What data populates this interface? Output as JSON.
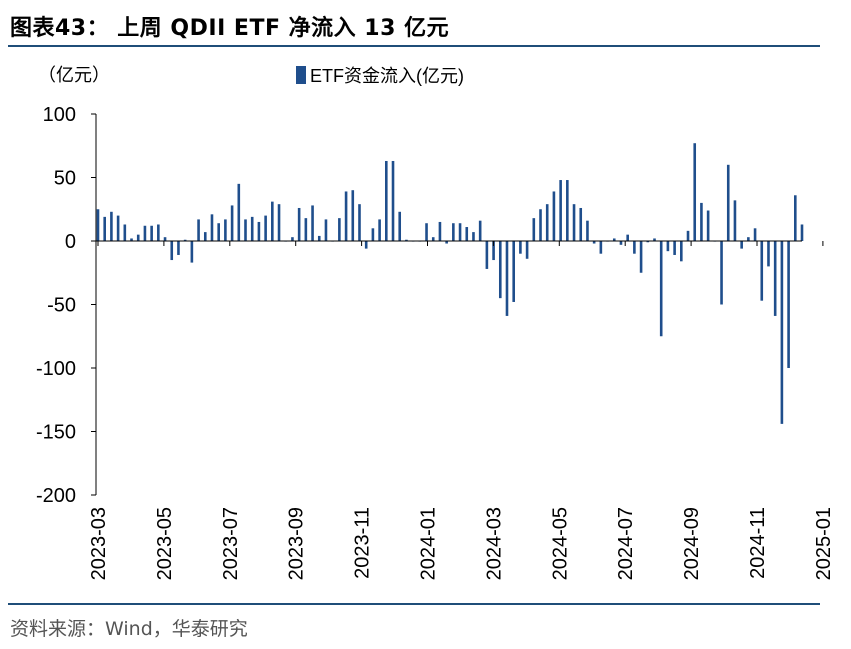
{
  "figure_title": "图表43： 上周 QDII ETF 净流入 13 亿元",
  "source": "资料来源：Wind，华泰研究",
  "chart_data": {
    "type": "bar",
    "title": "",
    "unit_label": "（亿元）",
    "xlabel": "",
    "ylabel": "亿元",
    "ylim": [
      -200,
      100
    ],
    "yticks": [
      100,
      50,
      0,
      -50,
      -100,
      -150,
      -200
    ],
    "color": "#1f4e8c",
    "legend": {
      "label": "ETF资金流入(亿元)",
      "position": "top-center"
    },
    "x_tick_labels": [
      "2023-03",
      "2023-05",
      "2023-07",
      "2023-09",
      "2023-11",
      "2024-01",
      "2024-03",
      "2024-05",
      "2024-07",
      "2024-09",
      "2024-11",
      "2025-01"
    ],
    "series": [
      {
        "name": "ETF资金流入(亿元)",
        "values": [
          25,
          19,
          23,
          20,
          13,
          2,
          5,
          12,
          12,
          13,
          3,
          -15,
          -11,
          1,
          -17,
          17,
          7,
          21,
          14,
          17,
          28,
          45,
          17,
          19,
          15,
          20,
          31,
          29,
          0,
          3,
          26,
          18,
          28,
          4,
          17,
          0,
          18,
          39,
          40,
          29,
          -6,
          10,
          17,
          63,
          63,
          23,
          1,
          0,
          0,
          14,
          3,
          15,
          -2,
          14,
          14,
          11,
          7,
          16,
          -22,
          -15,
          -45,
          -59,
          -48,
          -10,
          -14,
          18,
          25,
          29,
          39,
          48,
          48,
          29,
          26,
          16,
          -2,
          -10,
          0,
          2,
          -3,
          5,
          -10,
          -25,
          -1,
          2,
          -75,
          -8,
          -11,
          -16,
          8,
          77,
          30,
          24,
          0,
          -50,
          60,
          32,
          -6,
          3,
          10,
          -47,
          -20,
          -59,
          -144,
          -100,
          36,
          13
        ]
      }
    ]
  }
}
